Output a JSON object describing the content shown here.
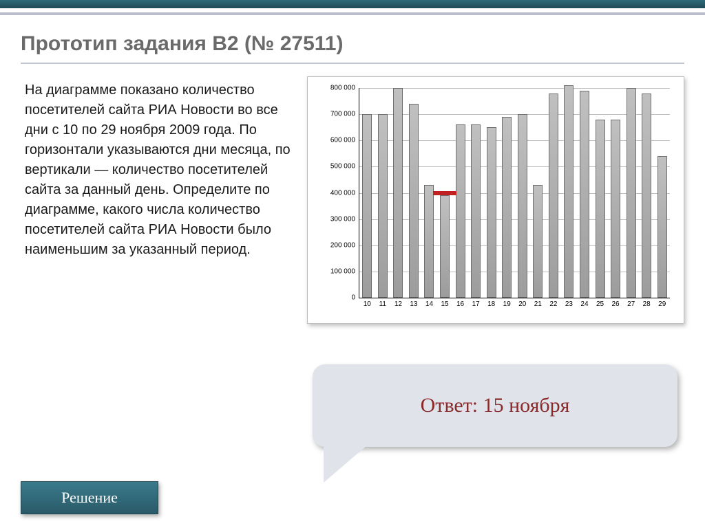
{
  "title": "Прототип задания B2 (№ 27511)",
  "body_text": "На диаграмме показано количество посетителей сайта РИА Новости во все дни с 10 по 29 ноября 2009 года. По горизонтали указываются дни месяца, по вертикали — количество посетителей сайта за данный день. Определите по диаграмме, какого числа количество посетителей сайта РИА Новости было наименьшим за указанный период.",
  "answer": "Ответ: 15 ноября",
  "solution_label": "Решение",
  "chart": {
    "type": "bar",
    "ylim": [
      0,
      800000
    ],
    "ytick_step": 100000,
    "yticks": [
      "0",
      "100 000",
      "200 000",
      "300 000",
      "400 000",
      "500 000",
      "600 000",
      "700 000",
      "800 000"
    ],
    "categories": [
      "10",
      "11",
      "12",
      "13",
      "14",
      "15",
      "16",
      "17",
      "18",
      "19",
      "20",
      "21",
      "22",
      "23",
      "24",
      "25",
      "26",
      "27",
      "28",
      "29"
    ],
    "values": [
      700000,
      700000,
      800000,
      740000,
      430000,
      390000,
      660000,
      660000,
      650000,
      690000,
      700000,
      430000,
      780000,
      810000,
      790000,
      680000,
      680000,
      800000,
      780000,
      540000
    ],
    "bar_color": "#9c9c9c",
    "bar_border": "#6e6e6e",
    "grid_color": "#bdbdbd",
    "background_color": "#ffffff",
    "bar_width_ratio": 0.62,
    "highlight": {
      "x_index": 5,
      "y_value": 390000,
      "color": "#c02020"
    },
    "label_fontsize": 10
  },
  "colors": {
    "header_bar": "#2d6b7a",
    "accent_line": "#b8becc",
    "title_text": "#6a6a6a",
    "callout_bg": "#e0e3e9",
    "answer_text": "#8a2b2b",
    "button_bg": "#2a5a68"
  }
}
